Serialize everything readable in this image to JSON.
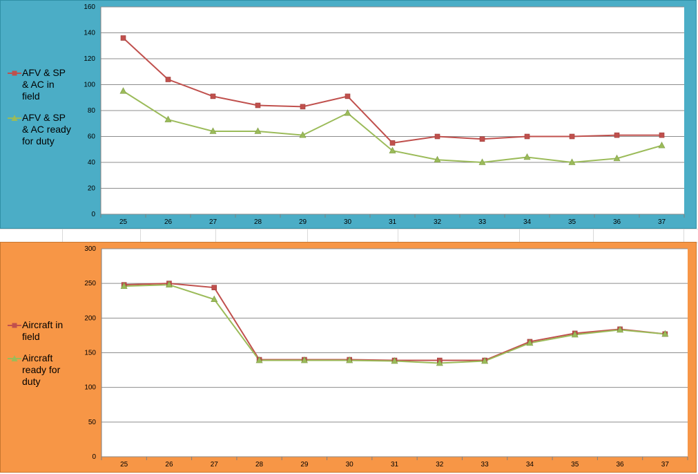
{
  "chart_data": [
    {
      "type": "line",
      "background": "#4badc6",
      "plot_background": "#ffffff",
      "categories": [
        "25",
        "26",
        "27",
        "28",
        "29",
        "30",
        "31",
        "32",
        "33",
        "34",
        "35",
        "36",
        "37"
      ],
      "ylim": [
        0,
        160
      ],
      "yticks": [
        0,
        20,
        40,
        60,
        80,
        100,
        120,
        140,
        160
      ],
      "legend_position": "left",
      "grid": true,
      "series": [
        {
          "name": "AFV & SP & AC in field",
          "name_lines": [
            "AFV & SP",
            "& AC in",
            "field"
          ],
          "color": "#c0504d",
          "marker": "square",
          "values": [
            136,
            104,
            91,
            84,
            83,
            91,
            55,
            60,
            58,
            60,
            60,
            61,
            61
          ]
        },
        {
          "name": "AFV & SP & AC ready for duty",
          "name_lines": [
            "AFV & SP",
            "& AC ready",
            "for duty"
          ],
          "color": "#9bbb59",
          "marker": "triangle",
          "values": [
            95,
            73,
            64,
            64,
            61,
            78,
            49,
            42,
            40,
            44,
            40,
            43,
            53
          ]
        }
      ]
    },
    {
      "type": "line",
      "background": "#f79646",
      "plot_background": "#ffffff",
      "categories": [
        "25",
        "26",
        "27",
        "28",
        "29",
        "30",
        "31",
        "32",
        "33",
        "34",
        "35",
        "36",
        "37"
      ],
      "ylim": [
        0,
        300
      ],
      "yticks": [
        0,
        50,
        100,
        150,
        200,
        250,
        300
      ],
      "legend_position": "left",
      "grid": true,
      "series": [
        {
          "name": "Aircraft in field",
          "name_lines": [
            "Aircraft in",
            "field"
          ],
          "color": "#c0504d",
          "marker": "square",
          "values": [
            248,
            250,
            244,
            140,
            140,
            140,
            139,
            139,
            139,
            166,
            178,
            184,
            177
          ]
        },
        {
          "name": "Aircraft ready for duty",
          "name_lines": [
            "Aircraft",
            "ready for",
            "duty"
          ],
          "color": "#9bbb59",
          "marker": "triangle",
          "values": [
            246,
            248,
            227,
            139,
            139,
            139,
            138,
            135,
            138,
            164,
            176,
            183,
            177
          ]
        }
      ]
    }
  ]
}
